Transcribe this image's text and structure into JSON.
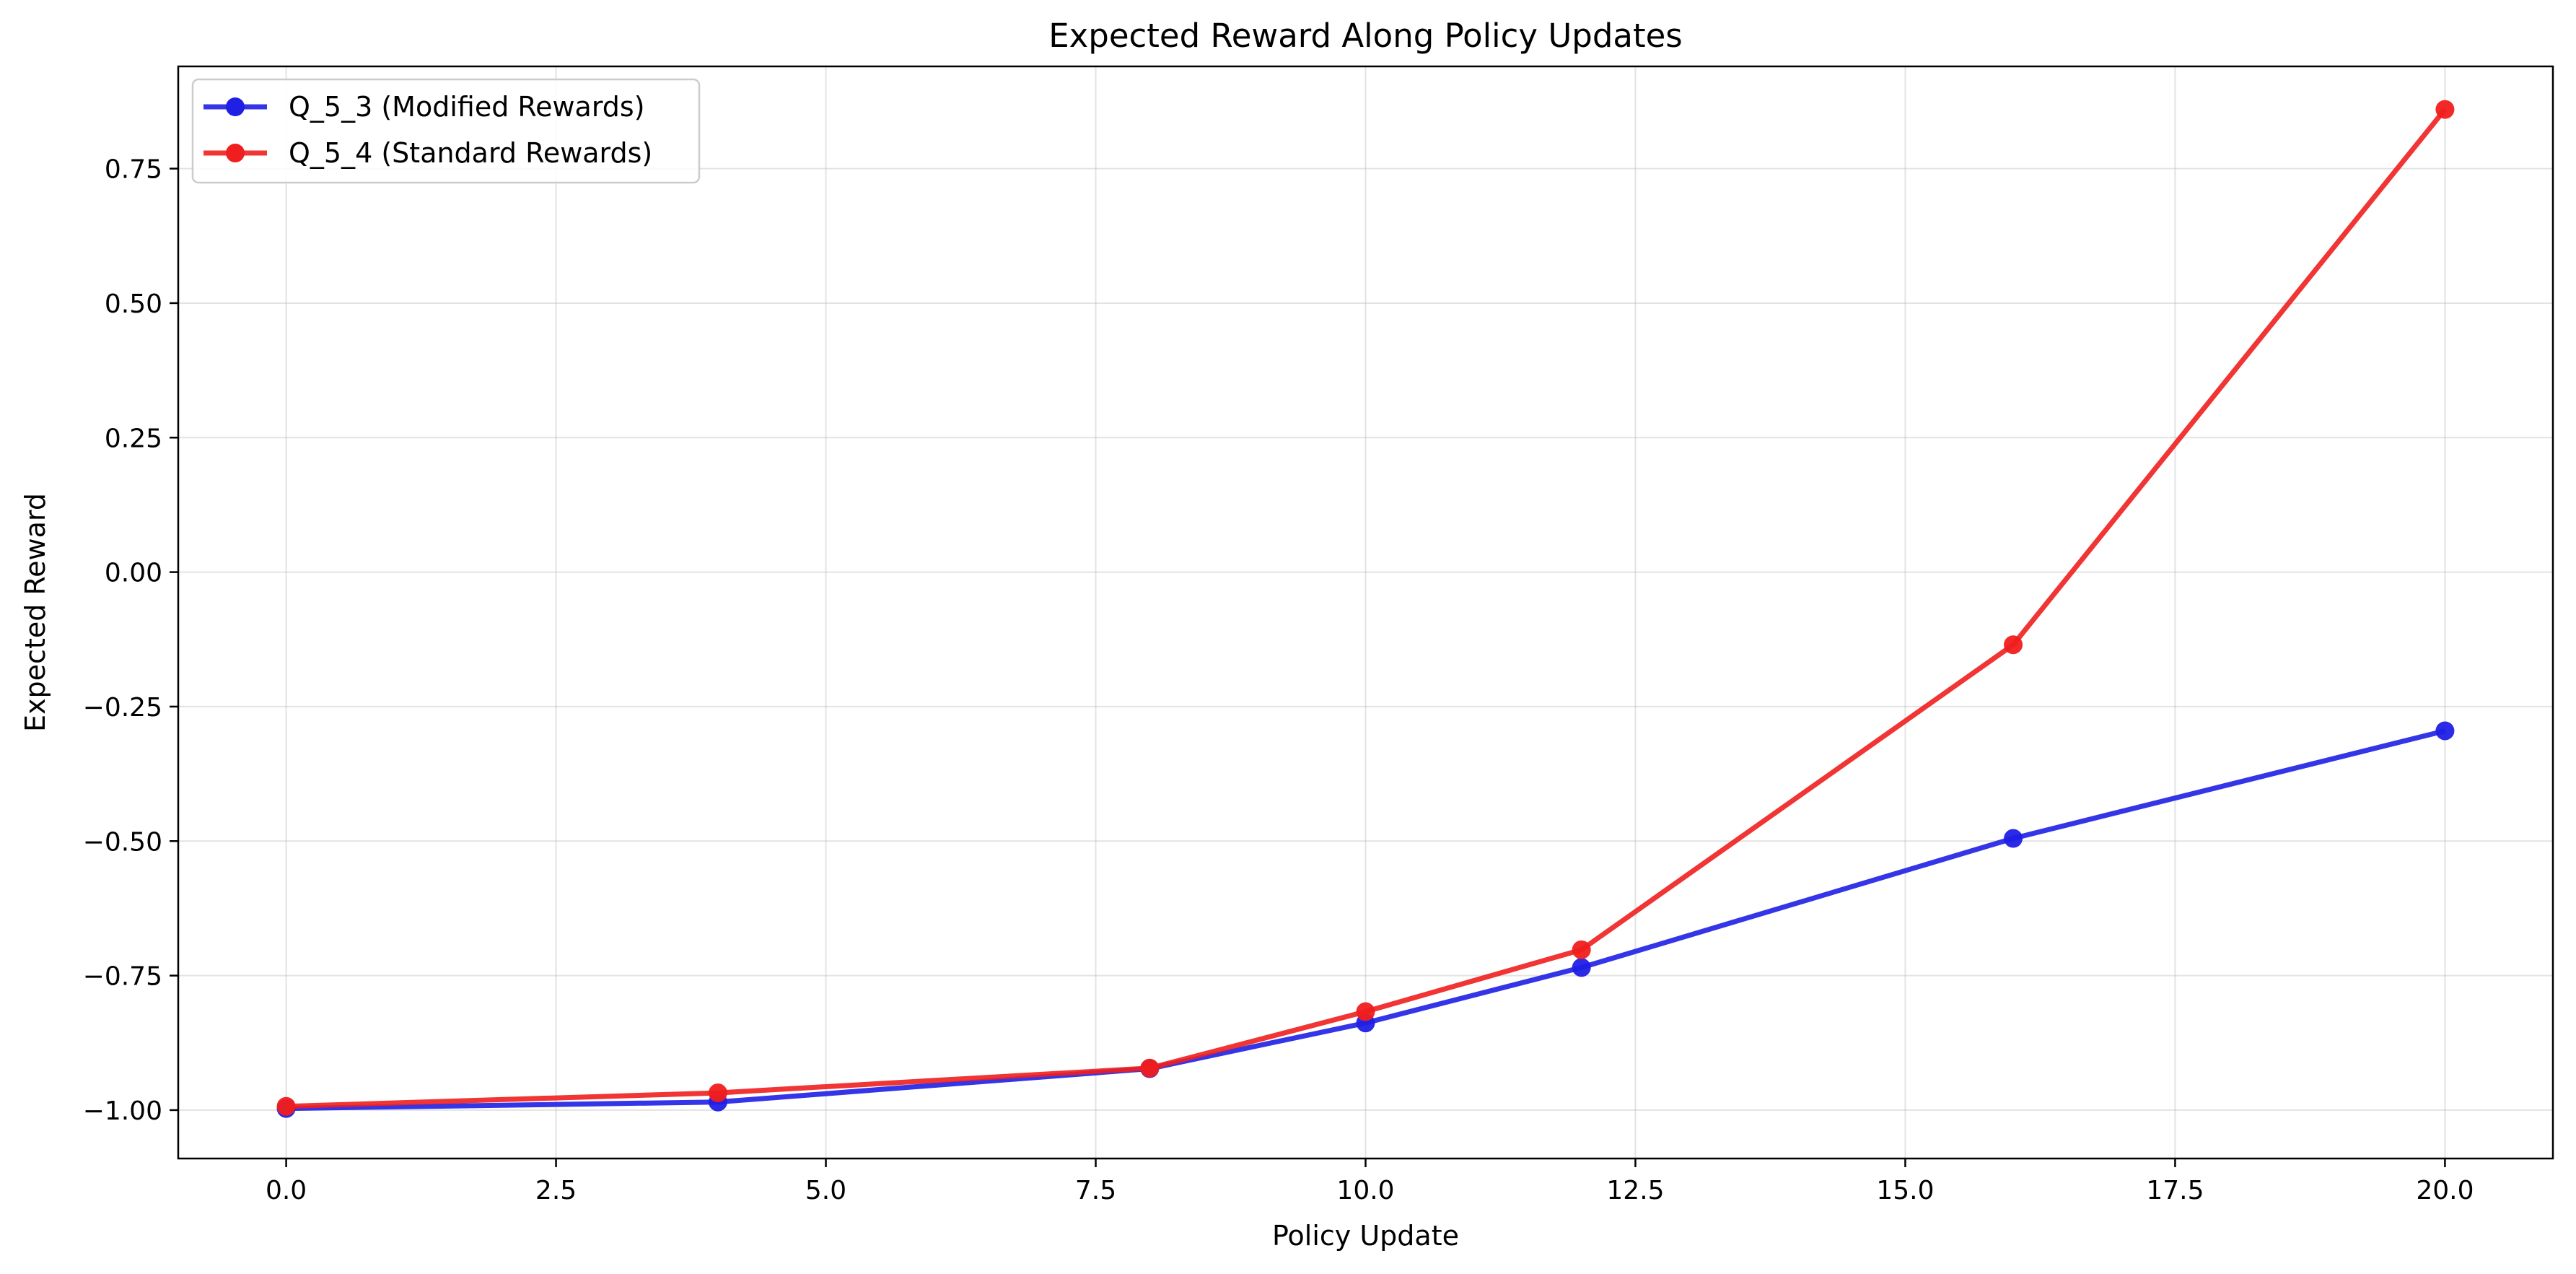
{
  "chart_data": {
    "type": "line",
    "title": "Expected Reward Along Policy Updates",
    "xlabel": "Policy Update",
    "ylabel": "Expected Reward",
    "xlim": [
      -1,
      21
    ],
    "ylim": [
      -1.09,
      0.94
    ],
    "xticks": [
      0.0,
      2.5,
      5.0,
      7.5,
      10.0,
      12.5,
      15.0,
      17.5,
      20.0
    ],
    "xtick_labels": [
      "0.0",
      "2.5",
      "5.0",
      "7.5",
      "10.0",
      "12.5",
      "15.0",
      "17.5",
      "20.0"
    ],
    "yticks": [
      -1.0,
      -0.75,
      -0.5,
      -0.25,
      0.0,
      0.25,
      0.5,
      0.75
    ],
    "ytick_labels": [
      "−1.00",
      "−0.75",
      "−0.50",
      "−0.25",
      "0.00",
      "0.25",
      "0.50",
      "0.75"
    ],
    "grid": true,
    "legend_position": "top-left",
    "x": [
      0,
      4,
      8,
      10,
      12,
      16,
      20
    ],
    "series": [
      {
        "name": "Q_5_3 (Modified Rewards)",
        "color": "#1f1fe6",
        "values": [
          -0.997,
          -0.985,
          -0.923,
          -0.838,
          -0.735,
          -0.495,
          -0.295
        ]
      },
      {
        "name": "Q_5_4 (Standard Rewards)",
        "color": "#f01e1e",
        "values": [
          -0.993,
          -0.968,
          -0.922,
          -0.817,
          -0.702,
          -0.135,
          0.86
        ]
      }
    ]
  }
}
